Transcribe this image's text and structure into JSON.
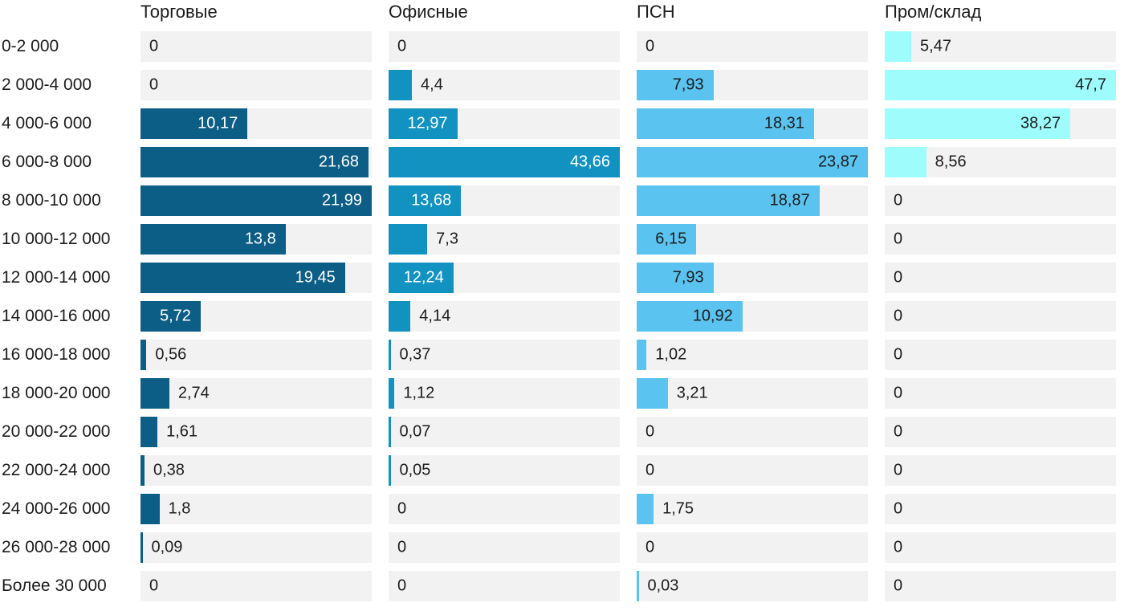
{
  "chart_data": {
    "type": "bar",
    "orientation": "horizontal",
    "scaling": "per-column-max",
    "grid": false,
    "legend_position": "column-headers-top",
    "track_color": "#f2f2f2",
    "text_color": "#1c1c1c",
    "categories": [
      "0-2 000",
      "2 000-4 000",
      "4 000-6 000",
      "6 000-8 000",
      "8 000-10 000",
      "10 000-12 000",
      "12 000-14 000",
      "14 000-16 000",
      "16 000-18 000",
      "18 000-20 000",
      "20 000-22 000",
      "22 000-24 000",
      "24 000-26 000",
      "26 000-28 000",
      "Более 30 000"
    ],
    "series": [
      {
        "name": "Торговые",
        "color": "#0d5e86",
        "label_color_inside": "#ffffff",
        "label_color_outside": "#1c1c1c",
        "max": 21.99,
        "values": [
          0,
          0,
          10.17,
          21.68,
          21.99,
          13.8,
          19.45,
          5.72,
          0.56,
          2.74,
          1.61,
          0.38,
          1.8,
          0.09,
          0
        ],
        "display_values": [
          "0",
          "0",
          "10,17",
          "21,68",
          "21,99",
          "13,8",
          "19,45",
          "5,72",
          "0,56",
          "2,74",
          "1,61",
          "0,38",
          "1,8",
          "0,09",
          "0"
        ]
      },
      {
        "name": "Офисные",
        "color": "#1192c1",
        "label_color_inside": "#ffffff",
        "label_color_outside": "#1c1c1c",
        "max": 43.66,
        "values": [
          0,
          4.4,
          12.97,
          43.66,
          13.68,
          7.3,
          12.24,
          4.14,
          0.37,
          1.12,
          0.07,
          0.05,
          0,
          0,
          0
        ],
        "display_values": [
          "0",
          "4,4",
          "12,97",
          "43,66",
          "13,68",
          "7,3",
          "12,24",
          "4,14",
          "0,37",
          "1,12",
          "0,07",
          "0,05",
          "0",
          "0",
          "0"
        ]
      },
      {
        "name": "ПСН",
        "color": "#5ac3ef",
        "label_color_inside": "#1c1c1c",
        "label_color_outside": "#1c1c1c",
        "max": 23.87,
        "values": [
          0,
          7.93,
          18.31,
          23.87,
          18.87,
          6.15,
          7.93,
          10.92,
          1.02,
          3.21,
          0,
          0,
          1.75,
          0,
          0.03
        ],
        "display_values": [
          "0",
          "7,93",
          "18,31",
          "23,87",
          "18,87",
          "6,15",
          "7,93",
          "10,92",
          "1,02",
          "3,21",
          "0",
          "0",
          "1,75",
          "0",
          "0,03"
        ]
      },
      {
        "name": "Пром/склад",
        "color": "#9efcfd",
        "label_color_inside": "#1c1c1c",
        "label_color_outside": "#1c1c1c",
        "max": 47.7,
        "values": [
          5.47,
          47.7,
          38.27,
          8.56,
          0,
          0,
          0,
          0,
          0,
          0,
          0,
          0,
          0,
          0,
          0
        ],
        "display_values": [
          "5,47",
          "47,7",
          "38,27",
          "8,56",
          "0",
          "0",
          "0",
          "0",
          "0",
          "0",
          "0",
          "0",
          "0",
          "0",
          "0"
        ]
      }
    ]
  }
}
